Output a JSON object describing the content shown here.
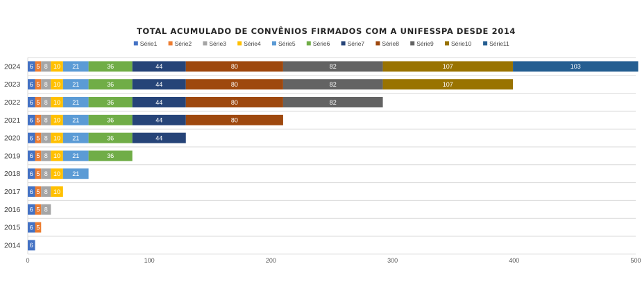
{
  "chart_data": {
    "type": "bar",
    "orientation": "horizontal",
    "stacked": true,
    "title": "TOTAL ACUMULADO DE CONVÊNIOS FIRMADOS COM A UNIFESSPA DESDE 2014",
    "xlabel": "",
    "ylabel": "",
    "xlim": [
      0,
      500
    ],
    "xticks": [
      0,
      100,
      200,
      300,
      400,
      500
    ],
    "grid": "horizontal lines between categories",
    "legend_position": "top",
    "categories": [
      "2024",
      "2023",
      "2022",
      "2021",
      "2020",
      "2019",
      "2018",
      "2017",
      "2016",
      "2015",
      "2014"
    ],
    "series": [
      {
        "name": "Série1",
        "color": "#4472C4",
        "values": [
          6,
          6,
          6,
          6,
          6,
          6,
          6,
          6,
          6,
          6,
          6
        ]
      },
      {
        "name": "Série2",
        "color": "#ED7D31",
        "values": [
          5,
          5,
          5,
          5,
          5,
          5,
          5,
          5,
          5,
          5,
          null
        ]
      },
      {
        "name": "Série3",
        "color": "#A5A5A5",
        "values": [
          8,
          8,
          8,
          8,
          8,
          8,
          8,
          8,
          8,
          null,
          null
        ]
      },
      {
        "name": "Série4",
        "color": "#FFC000",
        "values": [
          10,
          10,
          10,
          10,
          10,
          10,
          10,
          10,
          null,
          null,
          null
        ]
      },
      {
        "name": "Série5",
        "color": "#5B9BD5",
        "values": [
          21,
          21,
          21,
          21,
          21,
          21,
          21,
          null,
          null,
          null,
          null
        ]
      },
      {
        "name": "Série6",
        "color": "#70AD47",
        "values": [
          36,
          36,
          36,
          36,
          36,
          36,
          null,
          null,
          null,
          null,
          null
        ]
      },
      {
        "name": "Série7",
        "color": "#264478",
        "values": [
          44,
          44,
          44,
          44,
          44,
          null,
          null,
          null,
          null,
          null,
          null
        ]
      },
      {
        "name": "Série8",
        "color": "#9E480E",
        "values": [
          80,
          80,
          80,
          80,
          null,
          null,
          null,
          null,
          null,
          null,
          null
        ]
      },
      {
        "name": "Série9",
        "color": "#636363",
        "values": [
          82,
          82,
          82,
          null,
          null,
          null,
          null,
          null,
          null,
          null,
          null
        ]
      },
      {
        "name": "Série10",
        "color": "#997300",
        "values": [
          107,
          107,
          null,
          null,
          null,
          null,
          null,
          null,
          null,
          null,
          null
        ]
      },
      {
        "name": "Série11",
        "color": "#255E91",
        "values": [
          103,
          null,
          null,
          null,
          null,
          null,
          null,
          null,
          null,
          null,
          null
        ]
      }
    ]
  }
}
